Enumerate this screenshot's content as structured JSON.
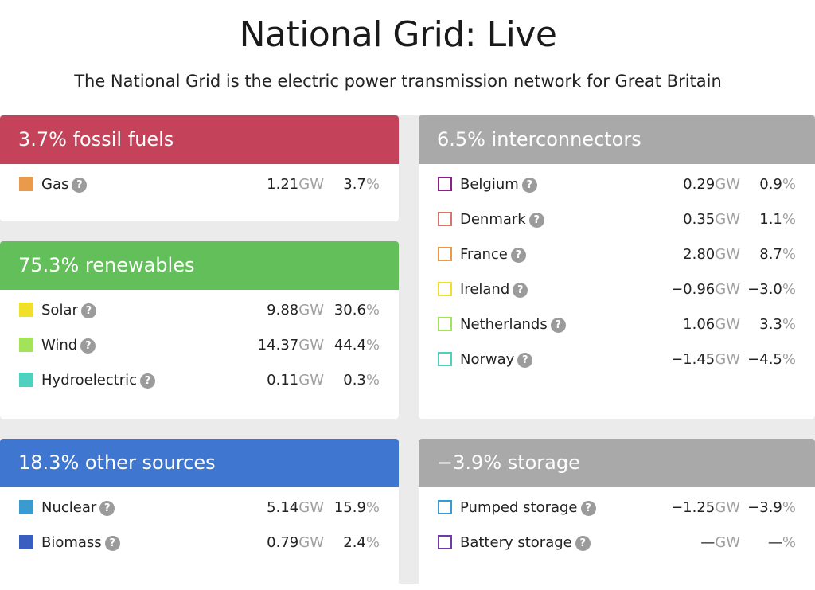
{
  "page": {
    "title": "National Grid: Live",
    "subtitle": "The National Grid is the electric power transmission network for Great Britain"
  },
  "units": {
    "gw": "GW",
    "pct": "%",
    "help": "?"
  },
  "fossil": {
    "header": "3.7% fossil fuels",
    "color": "#c4435a",
    "rows": [
      {
        "name": "Gas",
        "gw": "1.21",
        "pct": "3.7",
        "swatch": "#e99a4a"
      }
    ]
  },
  "renewables": {
    "header": "75.3% renewables",
    "color": "#63bf5a",
    "rows": [
      {
        "name": "Solar",
        "gw": "9.88",
        "pct": "30.6",
        "swatch": "#f0e02a"
      },
      {
        "name": "Wind",
        "gw": "14.37",
        "pct": "44.4",
        "swatch": "#a3e35a"
      },
      {
        "name": "Hydroelectric",
        "gw": "0.11",
        "pct": "0.3",
        "swatch": "#4fd1c0"
      }
    ]
  },
  "other": {
    "header": "18.3% other sources",
    "color": "#3f76cf",
    "rows": [
      {
        "name": "Nuclear",
        "gw": "5.14",
        "pct": "15.9",
        "swatch": "#3a9bd0"
      },
      {
        "name": "Biomass",
        "gw": "0.79",
        "pct": "2.4",
        "swatch": "#3a5ec0"
      }
    ]
  },
  "interconnectors": {
    "header": "6.5% interconnectors",
    "color": "#a9a9a9",
    "rows": [
      {
        "name": "Belgium",
        "gw": "0.29",
        "pct": "0.9",
        "swatch": "#8b1e8b"
      },
      {
        "name": "Denmark",
        "gw": "0.35",
        "pct": "1.1",
        "swatch": "#d9736d"
      },
      {
        "name": "France",
        "gw": "2.80",
        "pct": "8.7",
        "swatch": "#e99a4a"
      },
      {
        "name": "Ireland",
        "gw": "−0.96",
        "pct": "−3.0",
        "swatch": "#f0e02a"
      },
      {
        "name": "Netherlands",
        "gw": "1.06",
        "pct": "3.3",
        "swatch": "#a3e35a"
      },
      {
        "name": "Norway",
        "gw": "−1.45",
        "pct": "−4.5",
        "swatch": "#4fd1c0"
      }
    ]
  },
  "storage": {
    "header": "−3.9% storage",
    "color": "#a9a9a9",
    "rows": [
      {
        "name": "Pumped storage",
        "gw": "−1.25",
        "pct": "−3.9",
        "swatch": "#3a9bd0"
      },
      {
        "name": "Battery storage",
        "gw": "—",
        "pct": "—",
        "swatch": "#6f3aa8"
      }
    ]
  }
}
